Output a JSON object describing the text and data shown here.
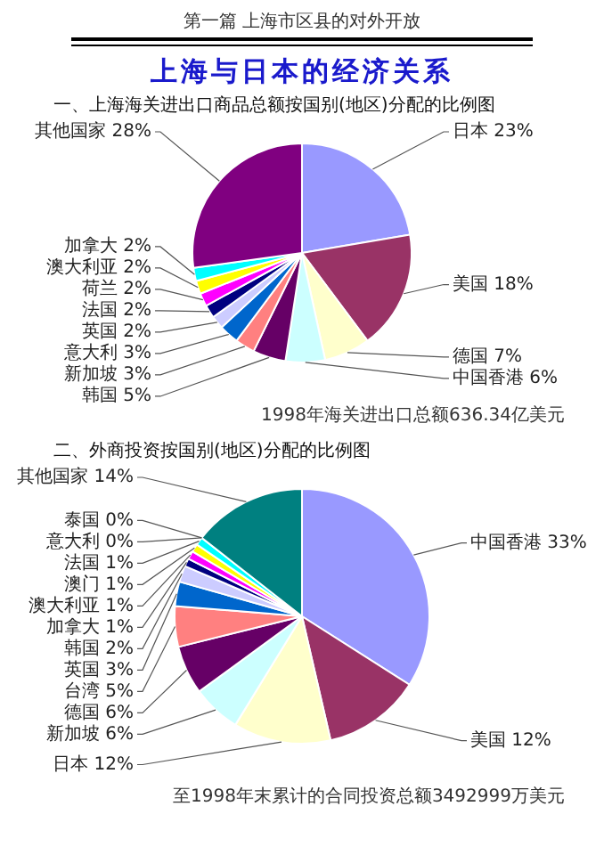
{
  "chart_data": [
    {
      "type": "pie",
      "title": "上海与日本的经济关系",
      "subtitle": "一、上海海关进出口商品总额按国别(地区)分配的比例图",
      "categories": [
        "日本",
        "美国",
        "德国",
        "中国香港",
        "韩国",
        "新加坡",
        "意大利",
        "英国",
        "法国",
        "荷兰",
        "澳大利亚",
        "加拿大",
        "其他国家"
      ],
      "values": [
        23,
        18,
        7,
        6,
        5,
        3,
        3,
        2,
        2,
        2,
        2,
        2,
        28
      ],
      "value_labels": [
        "23%",
        "18%",
        "7%",
        "6%",
        "5%",
        "3%",
        "3%",
        "2%",
        "2%",
        "2%",
        "2%",
        "2%",
        "28%"
      ],
      "colors": [
        "#9999ff",
        "#993366",
        "#ffffcc",
        "#ccffff",
        "#660066",
        "#ff8080",
        "#0066cc",
        "#ccccff",
        "#000080",
        "#ff00ff",
        "#ffff00",
        "#00ffff",
        "#800080"
      ],
      "annotations": [
        "第一篇 上海市区县的对外开放",
        "1998年海关进出口总额636.34亿美元"
      ]
    },
    {
      "type": "pie",
      "title": "二、外商投资按国别(地区)分配的比例图",
      "categories": [
        "中国香港",
        "美国",
        "日本",
        "新加坡",
        "德国",
        "台湾",
        "英国",
        "韩国",
        "加拿大",
        "澳大利亚",
        "澳门",
        "法国",
        "泰国",
        "意大利",
        "其他国家"
      ],
      "values": [
        33,
        12,
        12,
        6,
        6,
        5,
        3,
        2,
        1,
        1,
        1,
        1,
        0,
        0,
        14
      ],
      "value_labels": [
        "33%",
        "12%",
        "12%",
        "6%",
        "6%",
        "5%",
        "3%",
        "2%",
        "1%",
        "1%",
        "1%",
        "1%",
        "0%",
        "0%",
        "14%"
      ],
      "colors": [
        "#9999ff",
        "#993366",
        "#ffffcc",
        "#ccffff",
        "#660066",
        "#ff8080",
        "#0066cc",
        "#ccccff",
        "#000080",
        "#ff00ff",
        "#ffff00",
        "#00ffff",
        "#800080",
        "#800000",
        "#008080"
      ],
      "annotations": [
        "至1998年末累计的合同投资总额3492999万美元"
      ]
    }
  ]
}
